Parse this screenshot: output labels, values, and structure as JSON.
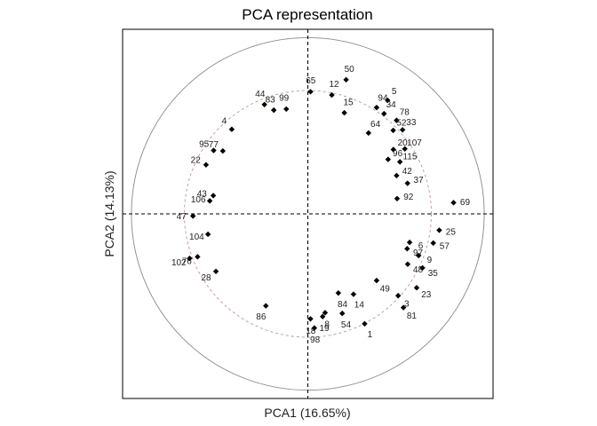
{
  "chart_data": {
    "type": "scatter",
    "title": "PCA representation",
    "xlabel": "PCA1 (16.65%)",
    "ylabel": "PCA2 (14.13%)",
    "xlim": [
      -1.05,
      1.05
    ],
    "ylim": [
      -1.05,
      1.05
    ],
    "grid": false,
    "outer_circle_radius": 1.0,
    "inner_circle_radius": 0.7,
    "points": [
      {
        "label": "50",
        "x": 0.217,
        "y": 0.763
      },
      {
        "label": "65",
        "x": 0.015,
        "y": 0.695
      },
      {
        "label": "44",
        "x": -0.246,
        "y": 0.622
      },
      {
        "label": "99",
        "x": -0.122,
        "y": 0.596
      },
      {
        "label": "12",
        "x": 0.136,
        "y": 0.676
      },
      {
        "label": "83",
        "x": -0.193,
        "y": 0.59
      },
      {
        "label": "5",
        "x": 0.452,
        "y": 0.646
      },
      {
        "label": "94",
        "x": 0.39,
        "y": 0.605
      },
      {
        "label": "34",
        "x": 0.432,
        "y": 0.57
      },
      {
        "label": "15",
        "x": 0.207,
        "y": 0.575
      },
      {
        "label": "78",
        "x": 0.503,
        "y": 0.532
      },
      {
        "label": "33",
        "x": 0.537,
        "y": 0.478
      },
      {
        "label": "64",
        "x": 0.344,
        "y": 0.46
      },
      {
        "label": "52",
        "x": 0.484,
        "y": 0.475
      },
      {
        "label": "107",
        "x": 0.55,
        "y": 0.37
      },
      {
        "label": "20",
        "x": 0.485,
        "y": 0.366
      },
      {
        "label": "96",
        "x": 0.455,
        "y": 0.31
      },
      {
        "label": "115",
        "x": 0.522,
        "y": 0.296
      },
      {
        "label": "42",
        "x": 0.503,
        "y": 0.218
      },
      {
        "label": "37",
        "x": 0.565,
        "y": 0.174
      },
      {
        "label": "92",
        "x": 0.506,
        "y": 0.087
      },
      {
        "label": "69",
        "x": 0.826,
        "y": 0.064
      },
      {
        "label": "25",
        "x": 0.745,
        "y": -0.093
      },
      {
        "label": "6",
        "x": 0.577,
        "y": -0.162
      },
      {
        "label": "57",
        "x": 0.711,
        "y": -0.166
      },
      {
        "label": "97",
        "x": 0.563,
        "y": -0.198
      },
      {
        "label": "9",
        "x": 0.628,
        "y": -0.237
      },
      {
        "label": "48",
        "x": 0.566,
        "y": -0.286
      },
      {
        "label": "35",
        "x": 0.65,
        "y": -0.307
      },
      {
        "label": "49",
        "x": 0.39,
        "y": -0.379
      },
      {
        "label": "23",
        "x": 0.617,
        "y": -0.42
      },
      {
        "label": "3",
        "x": 0.512,
        "y": -0.465
      },
      {
        "label": "84",
        "x": 0.173,
        "y": -0.45
      },
      {
        "label": "14",
        "x": 0.259,
        "y": -0.457
      },
      {
        "label": "81",
        "x": 0.542,
        "y": -0.533
      },
      {
        "label": "8",
        "x": 0.098,
        "y": -0.562
      },
      {
        "label": "54",
        "x": 0.195,
        "y": -0.566
      },
      {
        "label": "1",
        "x": 0.322,
        "y": -0.625
      },
      {
        "label": "18",
        "x": 0.015,
        "y": -0.597
      },
      {
        "label": "19",
        "x": 0.084,
        "y": -0.584
      },
      {
        "label": "98",
        "x": 0.037,
        "y": -0.649
      },
      {
        "label": "86",
        "x": -0.238,
        "y": -0.523
      },
      {
        "label": "4",
        "x": -0.431,
        "y": 0.481
      },
      {
        "label": "95",
        "x": -0.534,
        "y": 0.361
      },
      {
        "label": "77",
        "x": -0.482,
        "y": 0.358
      },
      {
        "label": "22",
        "x": -0.577,
        "y": 0.279
      },
      {
        "label": "43",
        "x": -0.536,
        "y": 0.104
      },
      {
        "label": "106",
        "x": -0.556,
        "y": 0.074
      },
      {
        "label": "47",
        "x": -0.651,
        "y": -0.012
      },
      {
        "label": "104",
        "x": -0.566,
        "y": -0.116
      },
      {
        "label": "76",
        "x": -0.625,
        "y": -0.244
      },
      {
        "label": "102",
        "x": -0.67,
        "y": -0.253
      },
      {
        "label": "28",
        "x": -0.521,
        "y": -0.327
      }
    ]
  }
}
